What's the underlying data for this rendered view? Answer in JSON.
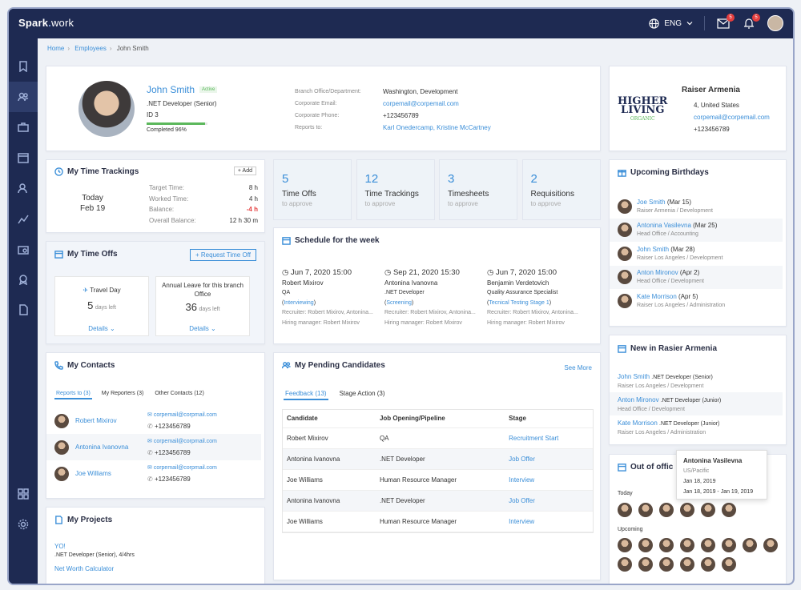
{
  "app": {
    "logo_main": "Spark",
    "logo_sub": "work",
    "lang": "ENG",
    "mail_badge": "5",
    "bell_badge": "5"
  },
  "breadcrumb": {
    "home": "Home",
    "employees": "Employees",
    "current": "John Smith"
  },
  "profile": {
    "name": "John Smith",
    "status": "Active",
    "role": ".NET Developer (Senior)",
    "id": "ID 3",
    "completed": "Completed 96%",
    "completed_pct": 96,
    "labels": {
      "branch": "Branch Office/Department:",
      "email": "Corporate Email:",
      "phone": "Corporate Phone:",
      "reports": "Reports to:"
    },
    "values": {
      "branch": "Washington, Development",
      "email": "corpemail@corpemail.com",
      "phone": "+123456789",
      "reports": "Karl Onedercamp, Kristine McCartney"
    }
  },
  "company": {
    "name": "Raiser Armenia",
    "logo_l1": "HIGHER",
    "logo_l2": "LIVING",
    "logo_l3": "ORGANIC",
    "address": "4, United States",
    "email": "corpemail@corpemail.com",
    "phone": "+123456789"
  },
  "time_tracking": {
    "title": "My Time Trackings",
    "add": "+ Add",
    "day": "Today",
    "date": "Feb 19",
    "rows": [
      {
        "label": "Target Time:",
        "value": "8 h"
      },
      {
        "label": "Worked Time:",
        "value": "4 h"
      },
      {
        "label": "Balance:",
        "value": "-4 h"
      },
      {
        "label": "Overall Balance:",
        "value": "12 h 30 m"
      }
    ]
  },
  "stats": [
    {
      "n": "5",
      "label": "Time Offs",
      "sub": "to approve"
    },
    {
      "n": "12",
      "label": "Time Trackings",
      "sub": "to approve"
    },
    {
      "n": "3",
      "label": "Timesheets",
      "sub": "to approve"
    },
    {
      "n": "2",
      "label": "Requisitions",
      "sub": "to approve"
    }
  ],
  "birthdays": {
    "title": "Upcoming Birthdays",
    "items": [
      {
        "name": "Joe Smith",
        "date": "(Mar 15)",
        "sub": "Raiser Armenia / Development"
      },
      {
        "name": "Antonina Vasilevna",
        "date": "(Mar 25)",
        "sub": "Head Office / Accounting"
      },
      {
        "name": "John Smith",
        "date": "(Mar 28)",
        "sub": "Raiser Los Angeles / Development"
      },
      {
        "name": "Anton Mironov",
        "date": "(Apr 2)",
        "sub": "Head Office / Development"
      },
      {
        "name": "Kate Morrison",
        "date": "(Apr 5)",
        "sub": "Raiser Los Angeles / Administration"
      }
    ]
  },
  "timeoffs": {
    "title": "My Time Offs",
    "request": "+ Request Time Off",
    "items": [
      {
        "name": "Travel Day",
        "n": "5",
        "unit": "days left",
        "details": "Details"
      },
      {
        "name": "Annual Leave for this branch Office",
        "n": "36",
        "unit": "days left",
        "details": "Details"
      }
    ]
  },
  "schedule": {
    "title": "Schedule for the week",
    "items": [
      {
        "date": "Jun 7, 2020 15:00",
        "person": "Robert Mixirov",
        "job": "QA",
        "stage": "Interviewing",
        "recruiter": "Recruiter: Robert Mixirov, Antonina...",
        "hm": "Hiring manager: Robert Mixirov"
      },
      {
        "date": "Sep 21, 2020 15:30",
        "person": "Antonina Ivanovna",
        ".job": "",
        "job": ".NET Developer",
        "stage": "Screening",
        "recruiter": "Recruiter: Robert Mixirov, Antonina...",
        "hm": "Hiring manager: Robert Mixirov"
      },
      {
        "date": "Jun 7, 2020 15:00",
        "person": "Benjamin Verdetovich",
        "job": "Quality Assurance Specialist",
        "stage": "Tecnical Testing Stage 1",
        "recruiter": "Recruiter: Robert Mixirov, Antonina...",
        "hm": "Hiring manager: Robert Mixirov"
      }
    ]
  },
  "new_in": {
    "title": "New in Rasier Armenia",
    "items": [
      {
        "name": "John Smith",
        "role": ".NET Developer (Senior)",
        "sub": "Raiser Los Angeles / Development"
      },
      {
        "name": "Anton Mironov",
        "role": ".NET Developer (Junior)",
        "sub": "Head Office / Development"
      },
      {
        "name": "Kate Morrison",
        "role": ".NET Developer (Junior)",
        "sub": "Raiser Los Angeles / Administration"
      }
    ]
  },
  "tooltip": {
    "name": "Antonina Vasilevna",
    "loc": "US/Pacific",
    "d1": "Jan 18, 2019",
    "d2": "Jan 18, 2019 - Jan 19, 2019"
  },
  "out_office": {
    "title": "Out of offic",
    "today": "Today",
    "upcoming": "Upcoming"
  },
  "contacts": {
    "title": "My Contacts",
    "tabs": [
      "Reports to (3)",
      "My Reporters (3)",
      "Other Contacts (12)"
    ],
    "items": [
      {
        "name": "Robert Mixirov",
        "email": "corpemail@corpmail.com",
        "phone": "+123456789"
      },
      {
        "name": "Antonina Ivanovna",
        "email": "corpemail@corpmail.com",
        "phone": "+123456789"
      },
      {
        "name": "Joe Williams",
        "email": "corpemail@corpmail.com",
        "phone": "+123456789"
      }
    ]
  },
  "candidates": {
    "title": "My Pending Candidates",
    "see_more": "See More",
    "tabs": [
      "Feedback (13)",
      "Stage Action (3)"
    ],
    "headers": [
      "Candidate",
      "Job Opening/Pipeline",
      "Stage"
    ],
    "rows": [
      [
        "Robert Mixirov",
        "QA",
        "Recruitment Start"
      ],
      [
        "Antonina Ivanovna",
        ".NET Developer",
        "Job Offer"
      ],
      [
        "Joe Williams",
        "Human Resource Manager",
        "Interview"
      ],
      [
        "Antonina Ivanovna",
        ".NET Developer",
        "Job Offer"
      ],
      [
        "Joe Williams",
        "Human Resource Manager",
        "Interview"
      ]
    ]
  },
  "projects": {
    "title": "My Projects",
    "p1": "YO!",
    "p1_sub": ".NET Developer (Senior), 4/4hrs",
    "p2": "Net Worth Calculator"
  },
  "colors": {
    "accent": "#3a8ed8",
    "nav": "#1e2a52",
    "danger": "#e53e3e",
    "active": "#5cb85c"
  }
}
